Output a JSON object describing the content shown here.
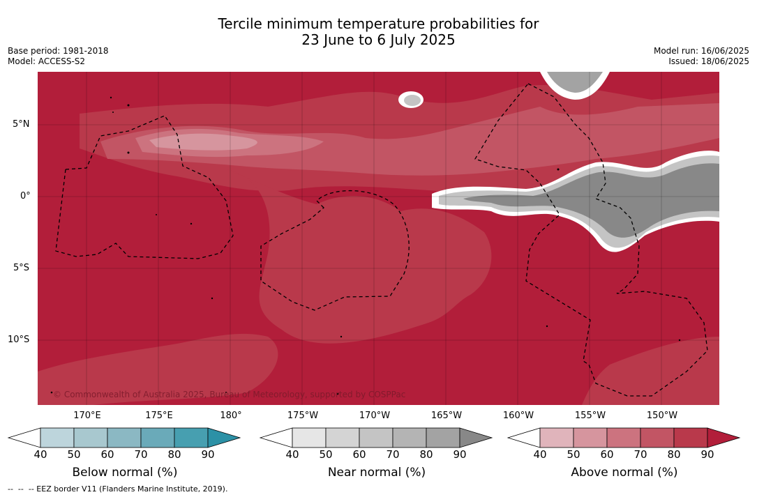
{
  "title_line1": "Tercile minimum temperature probabilities for",
  "title_line2": "23 June to 6 July 2025",
  "base_period": "Base period: 1981-2018",
  "model": "Model: ACCESS-S2",
  "model_run": "Model run: 16/06/2025",
  "issued": "Issued: 18/06/2025",
  "copyright": "© Commonwealth of Australia 2025, Bureau of Meteorology, supported by COSPPac",
  "lon_ticks": [
    "170°E",
    "175°E",
    "180°",
    "175°W",
    "170°W",
    "165°W",
    "160°W",
    "155°W",
    "150°W"
  ],
  "lat_ticks": [
    "5°N",
    "0°",
    "5°S",
    "10°S"
  ],
  "legend": {
    "below": {
      "title": "Below normal (%)",
      "colors": [
        "#bdd5dc",
        "#a8c8cf",
        "#8bb8c3",
        "#6aaab9",
        "#479fb0",
        "#2c91a6"
      ]
    },
    "near": {
      "title": "Near normal (%)",
      "colors": [
        "#e6e6e6",
        "#d4d4d4",
        "#c4c4c4",
        "#b4b4b4",
        "#a3a3a3",
        "#888888"
      ]
    },
    "above": {
      "title": "Above normal (%)",
      "colors": [
        "#e0b4bb",
        "#d6959e",
        "#cc737f",
        "#c25564",
        "#b9394b",
        "#b21e3a"
      ]
    },
    "ticks": [
      "40",
      "50",
      "60",
      "70",
      "80",
      "90"
    ]
  },
  "footer": "--  --  -- EEZ border V11 (Flanders Marine Institute, 2019)."
}
